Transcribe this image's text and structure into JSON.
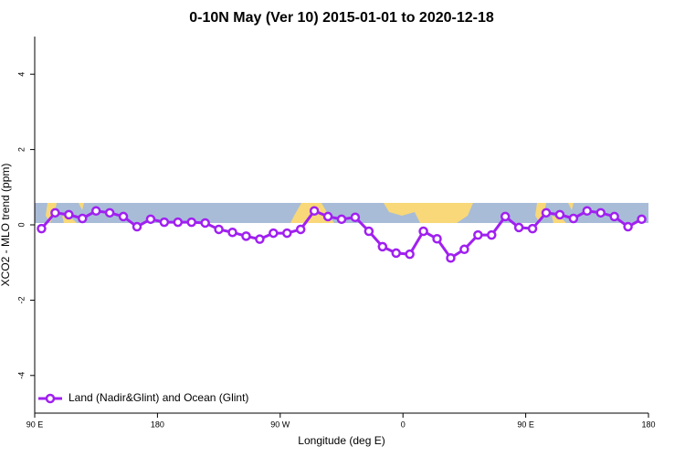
{
  "chart_data": {
    "type": "line",
    "title": "0-10N May (Ver 10)   2015-01-01 to 2020-12-18",
    "x_label": "Longitude (deg E)",
    "y_label": "XCO2 - MLO trend (ppm)",
    "x": [
      95,
      105,
      115,
      125,
      135,
      145,
      155,
      165,
      175,
      185,
      195,
      205,
      215,
      225,
      235,
      245,
      255,
      265,
      275,
      285,
      295,
      305,
      315,
      325,
      335,
      345,
      355,
      365,
      375,
      385,
      395,
      405,
      415,
      425,
      435,
      445,
      455,
      465,
      475,
      485,
      495,
      505,
      515,
      525,
      535
    ],
    "series": [
      {
        "name": "Land (Nadir&Glint) and Ocean (Glint)",
        "color": "#a020f0",
        "values": [
          -0.1,
          0.32,
          0.27,
          0.17,
          0.37,
          0.32,
          0.22,
          -0.05,
          0.15,
          0.07,
          0.07,
          0.07,
          0.05,
          -0.12,
          -0.2,
          -0.3,
          -0.38,
          -0.22,
          -0.22,
          -0.12,
          0.37,
          0.22,
          0.15,
          0.2,
          -0.17,
          -0.58,
          -0.75,
          -0.78,
          -0.17,
          -0.37,
          -0.88,
          -0.65,
          -0.27,
          -0.27,
          0.22,
          -0.07,
          -0.1,
          0.32,
          0.27,
          0.17,
          0.37,
          0.32,
          0.22,
          -0.05,
          0.15
        ]
      }
    ],
    "xlim": [
      90,
      540
    ],
    "xticks": [
      {
        "value": 90,
        "label": "90 E"
      },
      180,
      {
        "value": 270,
        "label": "90 W"
      },
      {
        "value": 360,
        "label": "0"
      },
      {
        "value": 450,
        "label": "90 E"
      },
      {
        "value": 540,
        "label": "180"
      }
    ],
    "ylim": [
      -5,
      5
    ],
    "yticks": [
      -4,
      -2,
      0,
      2,
      4
    ],
    "legend": "bottom-left"
  }
}
